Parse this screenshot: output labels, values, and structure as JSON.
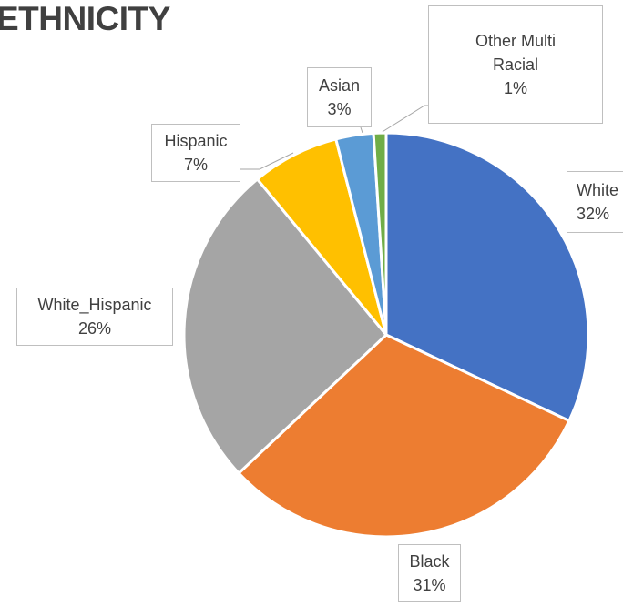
{
  "chart_data": {
    "type": "pie",
    "title": "ETHNICITY",
    "categories": [
      "White",
      "Black",
      "White_Hispanic",
      "Hispanic",
      "Asian",
      "Other Multi Racial"
    ],
    "values": [
      32,
      31,
      26,
      7,
      3,
      1
    ],
    "value_labels": [
      "32%",
      "31%",
      "26%",
      "7%",
      "3%",
      "1%"
    ],
    "colors": [
      "#4472c4",
      "#ed7d31",
      "#a5a5a5",
      "#ffc000",
      "#5b9bd5",
      "#70ad47"
    ]
  }
}
